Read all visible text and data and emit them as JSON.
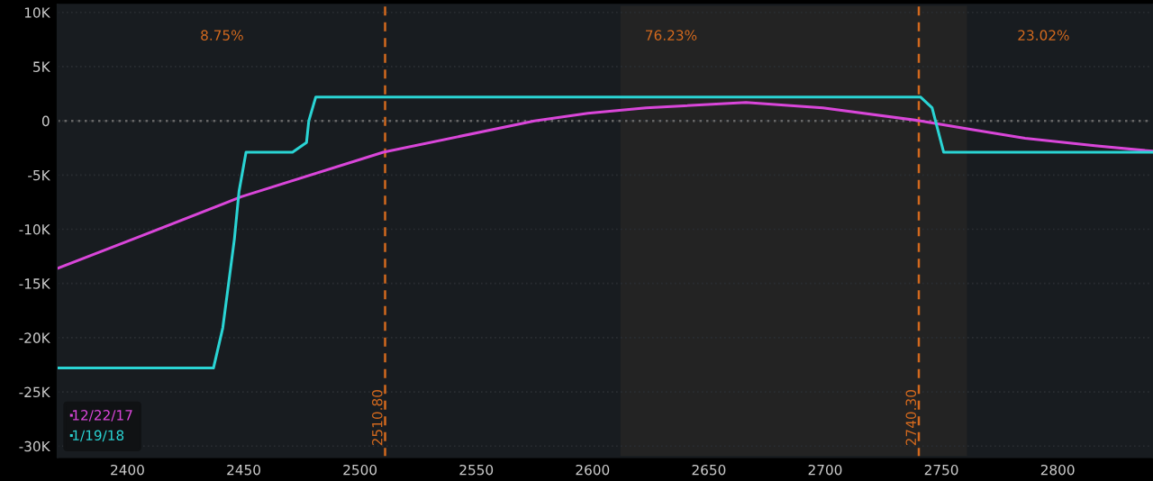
{
  "chart_data": {
    "type": "line",
    "xlim": [
      2370,
      2841
    ],
    "ylim": [
      -31,
      10.7
    ],
    "xticks": [
      2400,
      2450,
      2500,
      2550,
      2600,
      2650,
      2700,
      2750,
      2800
    ],
    "yticks": [
      {
        "value": 10,
        "label": "10K"
      },
      {
        "value": 5,
        "label": "5K"
      },
      {
        "value": 0,
        "label": "0"
      },
      {
        "value": -5,
        "label": "-5K"
      },
      {
        "value": -10,
        "label": "-10K"
      },
      {
        "value": -15,
        "label": "-15K"
      },
      {
        "value": -20,
        "label": "-20K"
      },
      {
        "value": -25,
        "label": "-25K"
      },
      {
        "value": -30,
        "label": "-30K"
      }
    ],
    "grid": "y",
    "legend": "bottom left",
    "line_style": "solid",
    "marker": "none",
    "series": [
      {
        "name": "12/22/17",
        "color": "#d946d9",
        "x": [
          2370,
          2405,
          2449,
          2510,
          2575,
          2598,
          2623,
          2666,
          2699,
          2741,
          2760,
          2786,
          2816,
          2841
        ],
        "values": [
          -13.6,
          -10.7,
          -7,
          -2.9,
          0,
          0.7,
          1.2,
          1.7,
          1.2,
          0,
          -0.7,
          -1.6,
          -2.3,
          -2.8
        ]
      },
      {
        "name": "1/19/18",
        "color": "#2ad4d4",
        "x": [
          2370,
          2437,
          2441,
          2444,
          2446,
          2448,
          2451,
          2471,
          2477,
          2478,
          2481,
          2741,
          2746,
          2751,
          2841
        ],
        "values": [
          -22.8,
          -22.8,
          -19.1,
          -14.2,
          -10.9,
          -6.5,
          -2.9,
          -2.9,
          -2,
          0,
          2.2,
          2.2,
          1.2,
          -2.9,
          -2.9
        ]
      }
    ],
    "bands": [
      {
        "axis": "x",
        "from": 2612,
        "to": 2761,
        "color": "#232323"
      }
    ],
    "ref_lines": [
      {
        "axis": "x",
        "value": 2510.8,
        "label": "2510.80",
        "color": "#d2691e",
        "line_style": "dashed"
      },
      {
        "axis": "x",
        "value": 2740.3,
        "label": "2740.30",
        "color": "#d2691e",
        "line_style": "dashed"
      },
      {
        "axis": "y",
        "value": 0,
        "color": "#666666",
        "line_style": "dotted"
      }
    ],
    "annotations": [
      "8.75%",
      "76.23%",
      "23.02%"
    ]
  }
}
